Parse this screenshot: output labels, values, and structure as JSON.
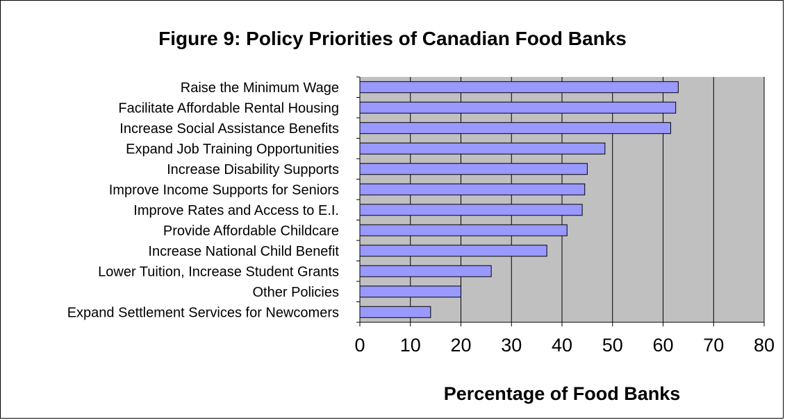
{
  "chart_data": {
    "type": "bar",
    "orientation": "horizontal",
    "title": "Figure 9: Policy Priorities of Canadian Food Banks",
    "xlabel": "Percentage of Food Banks",
    "ylabel": "",
    "xlim": [
      0,
      80
    ],
    "xticks": [
      0,
      10,
      20,
      30,
      40,
      50,
      60,
      70,
      80
    ],
    "grid": true,
    "legend": "none",
    "colors": {
      "bar": "#9999ff",
      "plot_bg": "#c0c0c0",
      "bar_edge": "#000000"
    },
    "categories": [
      "Raise the Minimum Wage",
      "Facilitate Affordable Rental Housing",
      "Increase Social Assistance Benefits",
      "Expand Job Training Opportunities",
      "Increase Disability Supports",
      "Improve Income Supports for Seniors",
      "Improve Rates and Access to E.I.",
      "Provide Affordable Childcare",
      "Increase National Child Benefit",
      "Lower Tuition, Increase Student Grants",
      "Other Policies",
      "Expand Settlement Services for Newcomers"
    ],
    "values": [
      63,
      62.5,
      61.5,
      48.5,
      45,
      44.5,
      44,
      41,
      37,
      26,
      20,
      14
    ]
  }
}
